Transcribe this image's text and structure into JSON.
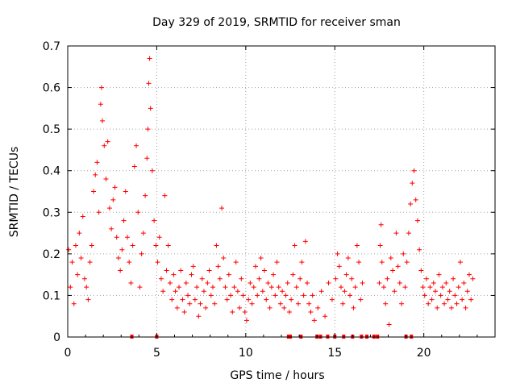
{
  "chart_data": {
    "type": "scatter",
    "title": "Day 329 of 2019, SRMTID for receiver sman",
    "xlabel": "GPS time / hours",
    "ylabel": "SRMTID / TECUs",
    "xlim": [
      0,
      24
    ],
    "ylim": [
      0,
      0.7
    ],
    "xticks": [
      0,
      5,
      10,
      15,
      20
    ],
    "xtick_labels": [
      "0",
      "5",
      "10",
      "15",
      "20"
    ],
    "yticks": [
      0,
      0.1,
      0.2,
      0.3,
      0.4,
      0.5,
      0.6,
      0.7
    ],
    "ytick_labels": [
      "0",
      "0.1",
      "0.2",
      "0.3",
      "0.4",
      "0.5",
      "0.6",
      "0.7"
    ],
    "grid": true,
    "marker": "+",
    "color": "#ff0000",
    "series": [
      {
        "name": "SRMTID",
        "points": [
          [
            0.05,
            0.21
          ],
          [
            0.15,
            0.12
          ],
          [
            0.25,
            0.18
          ],
          [
            0.35,
            0.08
          ],
          [
            0.45,
            0.22
          ],
          [
            0.55,
            0.15
          ],
          [
            0.65,
            0.25
          ],
          [
            0.75,
            0.19
          ],
          [
            0.85,
            0.29
          ],
          [
            0.95,
            0.14
          ],
          [
            1.05,
            0.12
          ],
          [
            1.15,
            0.09
          ],
          [
            1.25,
            0.18
          ],
          [
            1.35,
            0.22
          ],
          [
            1.45,
            0.35
          ],
          [
            1.55,
            0.39
          ],
          [
            1.65,
            0.42
          ],
          [
            1.75,
            0.3
          ],
          [
            1.85,
            0.56
          ],
          [
            1.9,
            0.6
          ],
          [
            1.95,
            0.52
          ],
          [
            2.05,
            0.46
          ],
          [
            2.15,
            0.38
          ],
          [
            2.25,
            0.47
          ],
          [
            2.35,
            0.31
          ],
          [
            2.45,
            0.26
          ],
          [
            2.55,
            0.33
          ],
          [
            2.65,
            0.36
          ],
          [
            2.75,
            0.24
          ],
          [
            2.85,
            0.19
          ],
          [
            2.95,
            0.16
          ],
          [
            3.05,
            0.21
          ],
          [
            3.15,
            0.28
          ],
          [
            3.25,
            0.35
          ],
          [
            3.35,
            0.24
          ],
          [
            3.45,
            0.18
          ],
          [
            3.55,
            0.13
          ],
          [
            3.65,
            0.22
          ],
          [
            3.75,
            0.41
          ],
          [
            3.85,
            0.46
          ],
          [
            3.95,
            0.3
          ],
          [
            4.05,
            0.12
          ],
          [
            4.15,
            0.2
          ],
          [
            4.25,
            0.25
          ],
          [
            4.35,
            0.34
          ],
          [
            4.45,
            0.43
          ],
          [
            4.5,
            0.5
          ],
          [
            4.55,
            0.61
          ],
          [
            4.6,
            0.67
          ],
          [
            4.65,
            0.55
          ],
          [
            4.75,
            0.4
          ],
          [
            4.85,
            0.28
          ],
          [
            4.95,
            0.22
          ],
          [
            5.05,
            0.18
          ],
          [
            5.15,
            0.24
          ],
          [
            5.25,
            0.14
          ],
          [
            5.35,
            0.11
          ],
          [
            5.45,
            0.34
          ],
          [
            5.55,
            0.16
          ],
          [
            5.65,
            0.22
          ],
          [
            5.75,
            0.13
          ],
          [
            5.85,
            0.09
          ],
          [
            5.95,
            0.15
          ],
          [
            6.05,
            0.11
          ],
          [
            6.15,
            0.07
          ],
          [
            6.25,
            0.12
          ],
          [
            6.35,
            0.16
          ],
          [
            6.45,
            0.09
          ],
          [
            6.55,
            0.06
          ],
          [
            6.65,
            0.13
          ],
          [
            6.75,
            0.1
          ],
          [
            6.85,
            0.08
          ],
          [
            6.95,
            0.15
          ],
          [
            7.05,
            0.17
          ],
          [
            7.15,
            0.09
          ],
          [
            7.25,
            0.12
          ],
          [
            7.35,
            0.05
          ],
          [
            7.45,
            0.08
          ],
          [
            7.55,
            0.14
          ],
          [
            7.65,
            0.11
          ],
          [
            7.75,
            0.07
          ],
          [
            7.85,
            0.13
          ],
          [
            7.95,
            0.16
          ],
          [
            8.05,
            0.1
          ],
          [
            8.15,
            0.12
          ],
          [
            8.25,
            0.08
          ],
          [
            8.35,
            0.22
          ],
          [
            8.45,
            0.17
          ],
          [
            8.55,
            0.14
          ],
          [
            8.65,
            0.31
          ],
          [
            8.75,
            0.19
          ],
          [
            8.85,
            0.12
          ],
          [
            8.95,
            0.09
          ],
          [
            9.05,
            0.15
          ],
          [
            9.15,
            0.1
          ],
          [
            9.25,
            0.06
          ],
          [
            9.35,
            0.12
          ],
          [
            9.45,
            0.18
          ],
          [
            9.55,
            0.11
          ],
          [
            9.65,
            0.07
          ],
          [
            9.75,
            0.14
          ],
          [
            9.85,
            0.1
          ],
          [
            9.95,
            0.06
          ],
          [
            10.05,
            0.04
          ],
          [
            10.15,
            0.09
          ],
          [
            10.25,
            0.13
          ],
          [
            10.35,
            0.08
          ],
          [
            10.45,
            0.12
          ],
          [
            10.55,
            0.17
          ],
          [
            10.65,
            0.1
          ],
          [
            10.75,
            0.14
          ],
          [
            10.85,
            0.19
          ],
          [
            10.95,
            0.11
          ],
          [
            11.05,
            0.16
          ],
          [
            11.15,
            0.09
          ],
          [
            11.25,
            0.13
          ],
          [
            11.35,
            0.07
          ],
          [
            11.45,
            0.12
          ],
          [
            11.55,
            0.15
          ],
          [
            11.65,
            0.1
          ],
          [
            11.75,
            0.18
          ],
          [
            11.85,
            0.12
          ],
          [
            11.95,
            0.08
          ],
          [
            12.05,
            0.11
          ],
          [
            12.15,
            0.07
          ],
          [
            12.25,
            0.1
          ],
          [
            12.35,
            0.13
          ],
          [
            12.45,
            0.06
          ],
          [
            12.55,
            0.09
          ],
          [
            12.65,
            0.15
          ],
          [
            12.75,
            0.22
          ],
          [
            12.85,
            0.12
          ],
          [
            12.95,
            0.08
          ],
          [
            13.05,
            0.14
          ],
          [
            13.15,
            0.18
          ],
          [
            13.25,
            0.1
          ],
          [
            13.35,
            0.23
          ],
          [
            13.45,
            0.13
          ],
          [
            13.55,
            0.08
          ],
          [
            13.65,
            0.06
          ],
          [
            13.75,
            0.1
          ],
          [
            13.85,
            0.04
          ],
          [
            14.05,
            0.07
          ],
          [
            14.25,
            0.11
          ],
          [
            14.45,
            0.05
          ],
          [
            14.65,
            0.13
          ],
          [
            14.85,
            0.09
          ],
          [
            15.05,
            0.14
          ],
          [
            15.15,
            0.2
          ],
          [
            15.25,
            0.17
          ],
          [
            15.35,
            0.12
          ],
          [
            15.45,
            0.08
          ],
          [
            15.55,
            0.11
          ],
          [
            15.65,
            0.15
          ],
          [
            15.75,
            0.19
          ],
          [
            15.85,
            0.1
          ],
          [
            15.95,
            0.14
          ],
          [
            16.05,
            0.07
          ],
          [
            16.15,
            0.12
          ],
          [
            16.25,
            0.22
          ],
          [
            16.35,
            0.18
          ],
          [
            16.45,
            0.09
          ],
          [
            16.55,
            0.13
          ],
          [
            17.5,
            0.13
          ],
          [
            17.55,
            0.22
          ],
          [
            17.6,
            0.27
          ],
          [
            17.65,
            0.18
          ],
          [
            17.75,
            0.12
          ],
          [
            17.85,
            0.08
          ],
          [
            17.95,
            0.14
          ],
          [
            18.05,
            0.03
          ],
          [
            18.15,
            0.19
          ],
          [
            18.25,
            0.16
          ],
          [
            18.35,
            0.11
          ],
          [
            18.45,
            0.25
          ],
          [
            18.55,
            0.17
          ],
          [
            18.65,
            0.13
          ],
          [
            18.75,
            0.08
          ],
          [
            18.85,
            0.2
          ],
          [
            18.95,
            0.12
          ],
          [
            19.05,
            0.18
          ],
          [
            19.15,
            0.25
          ],
          [
            19.25,
            0.32
          ],
          [
            19.35,
            0.37
          ],
          [
            19.45,
            0.4
          ],
          [
            19.55,
            0.33
          ],
          [
            19.65,
            0.28
          ],
          [
            19.75,
            0.21
          ],
          [
            19.85,
            0.16
          ],
          [
            19.95,
            0.12
          ],
          [
            20.05,
            0.1
          ],
          [
            20.15,
            0.14
          ],
          [
            20.25,
            0.08
          ],
          [
            20.35,
            0.12
          ],
          [
            20.45,
            0.09
          ],
          [
            20.55,
            0.13
          ],
          [
            20.65,
            0.11
          ],
          [
            20.75,
            0.07
          ],
          [
            20.85,
            0.15
          ],
          [
            20.95,
            0.1
          ],
          [
            21.05,
            0.12
          ],
          [
            21.15,
            0.08
          ],
          [
            21.25,
            0.13
          ],
          [
            21.35,
            0.09
          ],
          [
            21.45,
            0.11
          ],
          [
            21.55,
            0.07
          ],
          [
            21.65,
            0.14
          ],
          [
            21.75,
            0.1
          ],
          [
            21.85,
            0.08
          ],
          [
            21.95,
            0.12
          ],
          [
            22.05,
            0.18
          ],
          [
            22.15,
            0.09
          ],
          [
            22.25,
            0.13
          ],
          [
            22.35,
            0.07
          ],
          [
            22.45,
            0.11
          ],
          [
            22.55,
            0.15
          ],
          [
            22.65,
            0.09
          ],
          [
            22.75,
            0.14
          ]
        ]
      },
      {
        "name": "zero-markers",
        "x": [
          3.6,
          5.0,
          12.4,
          12.5,
          13.1,
          14.0,
          14.2,
          14.6,
          15.0,
          15.5,
          16.0,
          16.5,
          16.8,
          17.2,
          17.4,
          19.0,
          19.3
        ]
      }
    ]
  }
}
